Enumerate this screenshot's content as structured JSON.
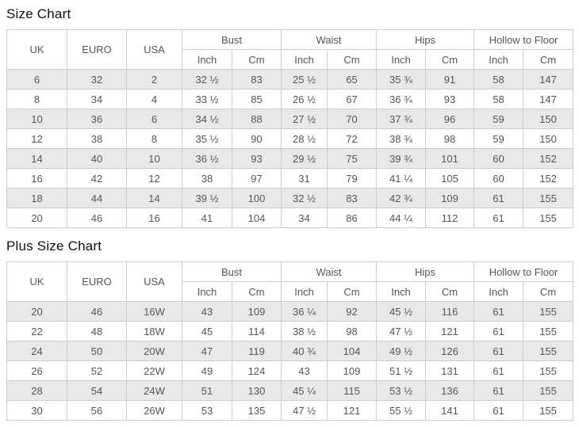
{
  "colors": {
    "stripe": "#e8e8e8",
    "border": "#cccccc",
    "text": "#555555",
    "title": "#111111",
    "background": "#ffffff"
  },
  "tables": [
    {
      "title": "Size Chart",
      "simple_headers": [
        "UK",
        "EURO",
        "USA"
      ],
      "group_headers": [
        {
          "label": "Bust",
          "sub": [
            "Inch",
            "Cm"
          ]
        },
        {
          "label": "Waist",
          "sub": [
            "Inch",
            "Cm"
          ]
        },
        {
          "label": "Hips",
          "sub": [
            "Inch",
            "Cm"
          ]
        },
        {
          "label": "Hollow to Floor",
          "sub": [
            "Inch",
            "Cm"
          ]
        }
      ],
      "rows": [
        [
          "6",
          "32",
          "2",
          "32 ½",
          "83",
          "25 ½",
          "65",
          "35 ¾",
          "91",
          "58",
          "147"
        ],
        [
          "8",
          "34",
          "4",
          "33 ½",
          "85",
          "26 ½",
          "67",
          "36 ¾",
          "93",
          "58",
          "147"
        ],
        [
          "10",
          "36",
          "6",
          "34 ½",
          "88",
          "27 ½",
          "70",
          "37 ¾",
          "96",
          "59",
          "150"
        ],
        [
          "12",
          "38",
          "8",
          "35 ½",
          "90",
          "28 ½",
          "72",
          "38 ¾",
          "98",
          "59",
          "150"
        ],
        [
          "14",
          "40",
          "10",
          "36 ½",
          "93",
          "29 ½",
          "75",
          "39 ¾",
          "101",
          "60",
          "152"
        ],
        [
          "16",
          "42",
          "12",
          "38",
          "97",
          "31",
          "79",
          "41 ¼",
          "105",
          "60",
          "152"
        ],
        [
          "18",
          "44",
          "14",
          "39 ½",
          "100",
          "32 ½",
          "83",
          "42 ¾",
          "109",
          "61",
          "155"
        ],
        [
          "20",
          "46",
          "16",
          "41",
          "104",
          "34",
          "86",
          "44 ¼",
          "112",
          "61",
          "155"
        ]
      ]
    },
    {
      "title": "Plus Size Chart",
      "simple_headers": [
        "UK",
        "EURO",
        "USA"
      ],
      "group_headers": [
        {
          "label": "Bust",
          "sub": [
            "Inch",
            "Cm"
          ]
        },
        {
          "label": "Waist",
          "sub": [
            "Inch",
            "Cm"
          ]
        },
        {
          "label": "Hips",
          "sub": [
            "Inch",
            "Cm"
          ]
        },
        {
          "label": "Hollow to Floor",
          "sub": [
            "Inch",
            "Cm"
          ]
        }
      ],
      "rows": [
        [
          "20",
          "46",
          "16W",
          "43",
          "109",
          "36 ¼",
          "92",
          "45 ½",
          "116",
          "61",
          "155"
        ],
        [
          "22",
          "48",
          "18W",
          "45",
          "114",
          "38 ½",
          "98",
          "47 ½",
          "121",
          "61",
          "155"
        ],
        [
          "24",
          "50",
          "20W",
          "47",
          "119",
          "40 ¾",
          "104",
          "49 ½",
          "126",
          "61",
          "155"
        ],
        [
          "26",
          "52",
          "22W",
          "49",
          "124",
          "43",
          "109",
          "51 ½",
          "131",
          "61",
          "155"
        ],
        [
          "28",
          "54",
          "24W",
          "51",
          "130",
          "45 ¼",
          "115",
          "53 ½",
          "136",
          "61",
          "155"
        ],
        [
          "30",
          "56",
          "26W",
          "53",
          "135",
          "47 ½",
          "121",
          "55 ½",
          "141",
          "61",
          "155"
        ]
      ]
    }
  ]
}
